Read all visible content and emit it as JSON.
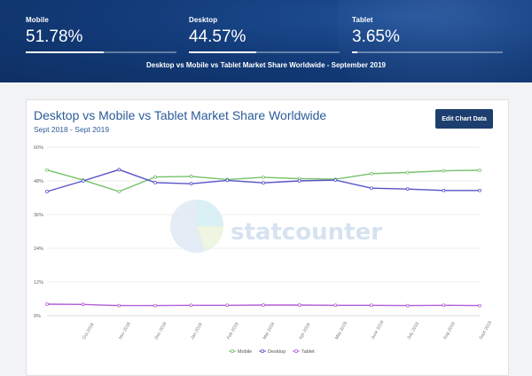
{
  "header": {
    "stats": [
      {
        "label": "Mobile",
        "value": "51.78%",
        "share": 0.5178
      },
      {
        "label": "Desktop",
        "value": "44.57%",
        "share": 0.4457
      },
      {
        "label": "Tablet",
        "value": "3.65%",
        "share": 0.0365
      }
    ],
    "subtitle": "Desktop vs Mobile vs Tablet Market Share Worldwide - September 2019"
  },
  "card": {
    "title": "Desktop vs Mobile vs Tablet Market Share Worldwide",
    "subtitle": "Sept 2018 - Sept 2019",
    "edit_label": "Edit Chart Data",
    "watermark": "statcounter"
  },
  "colors": {
    "mobile": "#76c26c",
    "desktop": "#5a52c9",
    "tablet": "#b35ed6",
    "accent": "#1d3f6f"
  },
  "chart_data": {
    "type": "line",
    "title": "Desktop vs Mobile vs Tablet Market Share Worldwide",
    "subtitle": "Sept 2018 - Sept 2019",
    "x": [
      "",
      "Oct 2018",
      "Nov 2018",
      "Dec 2018",
      "Jan 2019",
      "Feb 2019",
      "Mar 2019",
      "Apr 2019",
      "May 2019",
      "June 2019",
      "July 2019",
      "Aug 2019",
      "Sept 2019"
    ],
    "y_ticks": [
      "0%",
      "12%",
      "24%",
      "36%",
      "48%",
      "60%"
    ],
    "ylim": [
      0,
      60
    ],
    "series": [
      {
        "name": "Mobile",
        "color": "#76c26c",
        "values": [
          51.9,
          48.3,
          44.2,
          49.4,
          49.6,
          48.5,
          49.3,
          48.8,
          48.6,
          50.6,
          51.0,
          51.6,
          51.8
        ]
      },
      {
        "name": "Desktop",
        "color": "#5a52c9",
        "values": [
          44.2,
          48.0,
          52.0,
          47.4,
          47.0,
          48.2,
          47.3,
          48.0,
          48.3,
          45.4,
          45.1,
          44.6,
          44.6
        ]
      },
      {
        "name": "Tablet",
        "color": "#b35ed6",
        "values": [
          4.1,
          4.0,
          3.6,
          3.6,
          3.7,
          3.7,
          3.8,
          3.8,
          3.7,
          3.7,
          3.6,
          3.7,
          3.6
        ]
      }
    ],
    "grid": true,
    "legend_position": "bottom-center"
  }
}
